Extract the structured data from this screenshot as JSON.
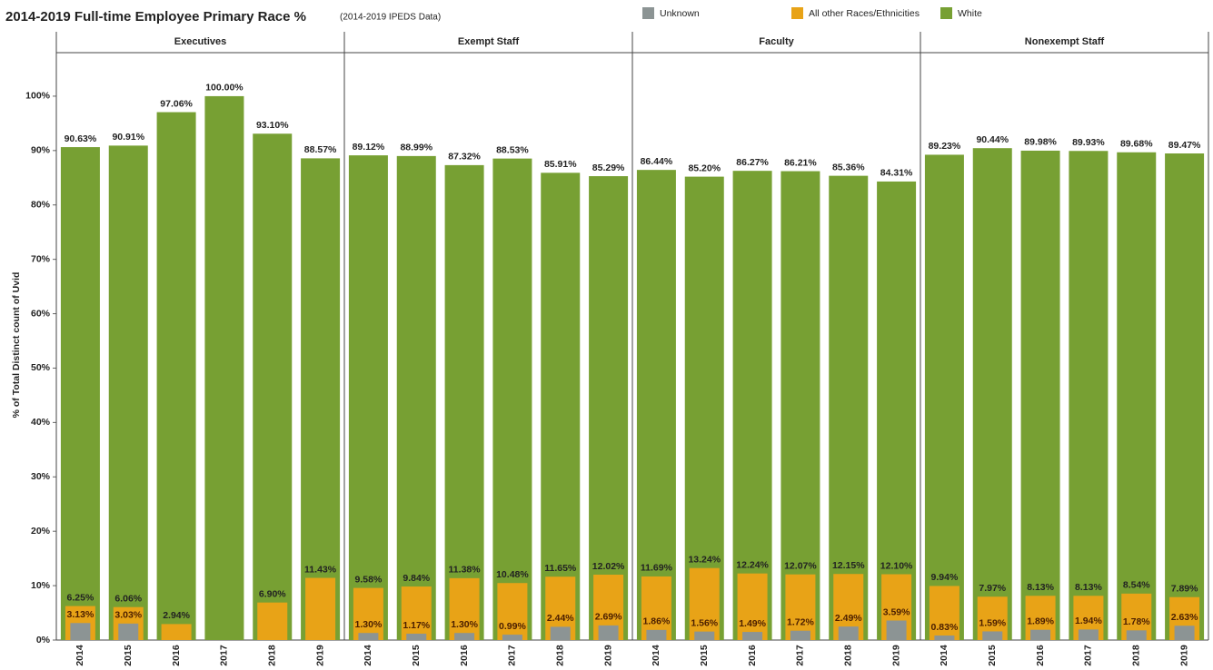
{
  "chart_data": {
    "type": "bar",
    "title": "2014-2019 Full-time Employee Primary Race %",
    "subtitle": "(2014-2019 IPEDS Data)",
    "y_label": "% of Total Distinct count of Uvid",
    "ylim": [
      0,
      108
    ],
    "yticks": [
      {
        "value": 0,
        "label": "0%"
      },
      {
        "value": 10,
        "label": "10%"
      },
      {
        "value": 20,
        "label": "20%"
      },
      {
        "value": 30,
        "label": "30%"
      },
      {
        "value": 40,
        "label": "40%"
      },
      {
        "value": 50,
        "label": "50%"
      },
      {
        "value": 60,
        "label": "60%"
      },
      {
        "value": 70,
        "label": "70%"
      },
      {
        "value": 80,
        "label": "80%"
      },
      {
        "value": 90,
        "label": "90%"
      },
      {
        "value": 100,
        "label": "100%"
      }
    ],
    "panels": [
      "Executives",
      "Exempt Staff",
      "Faculty",
      "Nonexempt Staff"
    ],
    "categories": [
      "2014",
      "2015",
      "2016",
      "2017",
      "2018",
      "2019"
    ],
    "series": [
      {
        "name": "White",
        "color": "#77a033",
        "values": [
          [
            90.63,
            90.91,
            97.06,
            100.0,
            93.1,
            88.57
          ],
          [
            89.12,
            88.99,
            87.32,
            88.53,
            85.91,
            85.29
          ],
          [
            86.44,
            85.2,
            86.27,
            86.21,
            85.36,
            84.31
          ],
          [
            89.23,
            90.44,
            89.98,
            89.93,
            89.68,
            89.47
          ]
        ],
        "value_labels": [
          [
            "90.63%",
            "90.91%",
            "97.06%",
            "100.00%",
            "93.10%",
            "88.57%"
          ],
          [
            "89.12%",
            "88.99%",
            "87.32%",
            "88.53%",
            "85.91%",
            "85.29%"
          ],
          [
            "86.44%",
            "85.20%",
            "86.27%",
            "86.21%",
            "85.36%",
            "84.31%"
          ],
          [
            "89.23%",
            "90.44%",
            "89.98%",
            "89.93%",
            "89.68%",
            "89.47%"
          ]
        ]
      },
      {
        "name": "All other Races/Ethnicities",
        "color": "#e8a317",
        "values": [
          [
            6.25,
            6.06,
            2.94,
            null,
            6.9,
            11.43
          ],
          [
            9.58,
            9.84,
            11.38,
            10.48,
            11.65,
            12.02
          ],
          [
            11.69,
            13.24,
            12.24,
            12.07,
            12.15,
            12.1
          ],
          [
            9.94,
            7.97,
            8.13,
            8.13,
            8.54,
            7.89
          ]
        ],
        "value_labels": [
          [
            "6.25%",
            "6.06%",
            "2.94%",
            null,
            "6.90%",
            "11.43%"
          ],
          [
            "9.58%",
            "9.84%",
            "11.38%",
            "10.48%",
            "11.65%",
            "12.02%"
          ],
          [
            "11.69%",
            "13.24%",
            "12.24%",
            "12.07%",
            "12.15%",
            "12.10%"
          ],
          [
            "9.94%",
            "7.97%",
            "8.13%",
            "8.13%",
            "8.54%",
            "7.89%"
          ]
        ]
      },
      {
        "name": "Unknown",
        "color": "#8c9494",
        "values": [
          [
            3.13,
            3.03,
            null,
            null,
            null,
            null
          ],
          [
            1.3,
            1.17,
            1.3,
            0.99,
            2.44,
            2.69
          ],
          [
            1.86,
            1.56,
            1.49,
            1.72,
            2.49,
            3.59
          ],
          [
            0.83,
            1.59,
            1.89,
            1.94,
            1.78,
            2.63
          ]
        ],
        "value_labels": [
          [
            "3.13%",
            "3.03%",
            null,
            null,
            null,
            null
          ],
          [
            "1.30%",
            "1.17%",
            "1.30%",
            "0.99%",
            "2.44%",
            "2.69%"
          ],
          [
            "1.86%",
            "1.56%",
            "1.49%",
            "1.72%",
            "2.49%",
            "3.59%"
          ],
          [
            "0.83%",
            "1.59%",
            "1.89%",
            "1.94%",
            "1.78%",
            "2.63%"
          ]
        ]
      }
    ]
  }
}
